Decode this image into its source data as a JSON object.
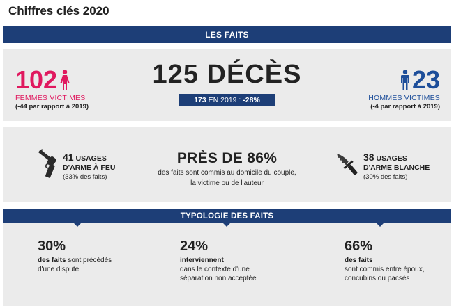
{
  "title": "Chiffres clés 2020",
  "bands": {
    "faits": "LES FAITS",
    "typologie": "TYPOLOGIE DES FAITS"
  },
  "women": {
    "number": "102",
    "label": "FEMMES VICTIMES",
    "sub": "(-44 par rapport à 2019)",
    "color": "#e0195f",
    "icon": "woman-icon"
  },
  "men": {
    "number": "23",
    "label": "HOMMES VICTIMES",
    "sub": "(-4 par rapport à 2019)",
    "color": "#1d4e9a",
    "icon": "man-icon"
  },
  "deaths": {
    "headline": "125 DÉCÈS",
    "prev_value": "173",
    "prev_text": " EN 2019 : ",
    "change": "-28%"
  },
  "firearm": {
    "count": "41",
    "unit": " USAGES",
    "label": "D'ARME À FEU",
    "share": "(33% des faits)",
    "icon": "revolver-icon"
  },
  "knife": {
    "count": "38",
    "unit": " USAGES",
    "label": "D'ARME BLANCHE",
    "share": "(30% des faits)",
    "icon": "knife-icon"
  },
  "home": {
    "headline": "PRÈS DE 86%",
    "line1": "des faits sont commis au domicile du couple,",
    "line2": "la victime ou de l'auteur"
  },
  "typology": [
    {
      "pct": "30%",
      "bold": "des faits",
      "rest": " sont précédés",
      "line2": "d'une dispute",
      "line3": ""
    },
    {
      "pct": "24%",
      "bold": "interviennent",
      "rest": "",
      "line2": "dans le contexte d'une",
      "line3": "séparation non acceptée"
    },
    {
      "pct": "66%",
      "bold": "des faits",
      "rest": "",
      "line2": "sont commis entre époux,",
      "line3": "concubins ou pacsés"
    }
  ],
  "accent": "#1d3e77"
}
